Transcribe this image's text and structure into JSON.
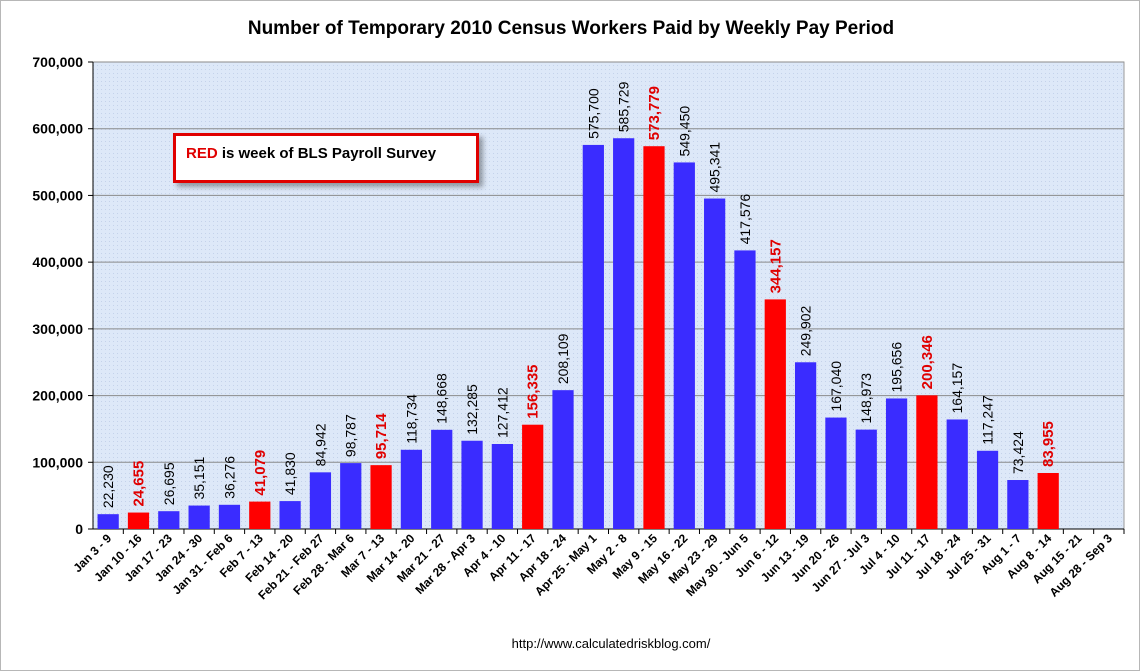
{
  "chart_data": {
    "type": "bar",
    "title": "Number of Temporary 2010 Census Workers Paid by Weekly Pay Period",
    "xlabel": "",
    "ylabel": "",
    "ylim": [
      0,
      700000
    ],
    "yticks": [
      0,
      100000,
      200000,
      300000,
      400000,
      500000,
      600000,
      700000
    ],
    "ytick_labels": [
      "0",
      "100,000",
      "200,000",
      "300,000",
      "400,000",
      "500,000",
      "600,000",
      "700,000"
    ],
    "grid": true,
    "categories": [
      "Jan 3 - 9",
      "Jan 10 - 16",
      "Jan 17 - 23",
      "Jan 24 - 30",
      "Jan 31 - Feb 6",
      "Feb 7 - 13",
      "Feb 14 - 20",
      "Feb 21 - Feb 27",
      "Feb 28 - Mar 6",
      "Mar 7 - 13",
      "Mar 14 - 20",
      "Mar 21 - 27",
      "Mar 28 - Apr 3",
      "Apr 4 - 10",
      "Apr 11 - 17",
      "Apr 18 - 24",
      "Apr 25 - May 1",
      "May 2 - 8",
      "May 9 - 15",
      "May 16 - 22",
      "May 23 - 29",
      "May 30 - Jun 5",
      "Jun 6 - 12",
      "Jun 13 - 19",
      "Jun 20 - 26",
      "Jun 27 - Jul 3",
      "Jul 4 - 10",
      "Jul 11 - 17",
      "Jul 18 - 24",
      "Jul 25 - 31",
      "Aug 1 - 7",
      "Aug 8 - 14",
      "Aug 15 - 21",
      "Aug 28 - Sep 3"
    ],
    "values": [
      22230,
      24655,
      26695,
      35151,
      36276,
      41079,
      41830,
      84942,
      98787,
      95714,
      118734,
      148668,
      132285,
      127412,
      156335,
      208109,
      575700,
      585729,
      573779,
      549450,
      495341,
      417576,
      344157,
      249902,
      167040,
      148973,
      195656,
      200346,
      164157,
      117247,
      73424,
      83955,
      null,
      null
    ],
    "value_labels": [
      "22,230",
      "24,655",
      "26,695",
      "35,151",
      "36,276",
      "41,079",
      "41,830",
      "84,942",
      "98,787",
      "95,714",
      "118,734",
      "148,668",
      "132,285",
      "127,412",
      "156,335",
      "208,109",
      "575,700",
      "585,729",
      "573,779",
      "549,450",
      "495,341",
      "417,576",
      "344,157",
      "249,902",
      "167,040",
      "148,973",
      "195,656",
      "200,346",
      "164,157",
      "117,247",
      "73,424",
      "83,955",
      "",
      ""
    ],
    "survey_week": [
      false,
      true,
      false,
      false,
      false,
      true,
      false,
      false,
      false,
      true,
      false,
      false,
      false,
      false,
      true,
      false,
      false,
      false,
      true,
      false,
      false,
      false,
      true,
      false,
      false,
      false,
      false,
      true,
      false,
      false,
      false,
      true,
      false,
      false
    ],
    "colors": {
      "bar": "#3a2cff",
      "survey_bar": "#ff0000",
      "survey_label": "#e00000",
      "plot_bg": "#dde8f8",
      "gridline": "#8a8a8a"
    }
  },
  "legend": {
    "red_word": "RED",
    "rest": " is week  of BLS Payroll Survey"
  },
  "source_url": "http://www.calculatedriskblog.com/"
}
